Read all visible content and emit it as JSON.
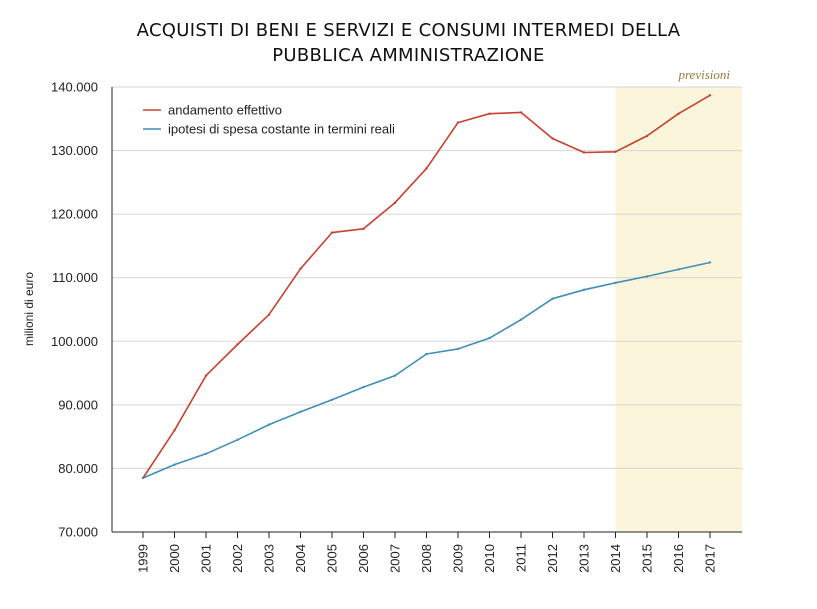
{
  "chart_data": {
    "type": "line",
    "title_lines": [
      "ACQUISTI DI BENI E SERVIZI E CONSUMI INTERMEDI DELLA",
      "PUBBLICA AMMINISTRAZIONE"
    ],
    "xlabel": "",
    "ylabel": "milioni di euro",
    "categories": [
      "1999",
      "2000",
      "2001",
      "2002",
      "2003",
      "2004",
      "2005",
      "2006",
      "2007",
      "2008",
      "2009",
      "2010",
      "2011",
      "2012",
      "2013",
      "2014",
      "2015",
      "2016",
      "2017"
    ],
    "ylim": [
      70000,
      140000
    ],
    "yticks": [
      70000,
      80000,
      90000,
      100000,
      110000,
      120000,
      130000,
      140000
    ],
    "ytick_labels": [
      "70.000",
      "80.000",
      "90.000",
      "100.000",
      "110.000",
      "120.000",
      "130.000",
      "140.000"
    ],
    "grid": "horizontal",
    "legend_position": "top-left",
    "forecast": {
      "label": "previsioni",
      "from": "2014",
      "to": "2017",
      "color": "#fbf5dc"
    },
    "series": [
      {
        "name": "andamento effettivo",
        "color": "#c8412f",
        "values": [
          78500,
          86000,
          94600,
          99500,
          104200,
          111400,
          117100,
          117700,
          121800,
          127200,
          134400,
          135800,
          136000,
          131900,
          129700,
          129800,
          132300,
          135800,
          138700
        ]
      },
      {
        "name": "ipotesi di spesa costante in termini reali",
        "color": "#3f8fb8",
        "values": [
          78500,
          80600,
          82300,
          84500,
          86900,
          88900,
          90800,
          92800,
          94600,
          98000,
          98800,
          100500,
          103400,
          106700,
          108100,
          109200,
          110200,
          111300,
          112400
        ]
      }
    ]
  }
}
